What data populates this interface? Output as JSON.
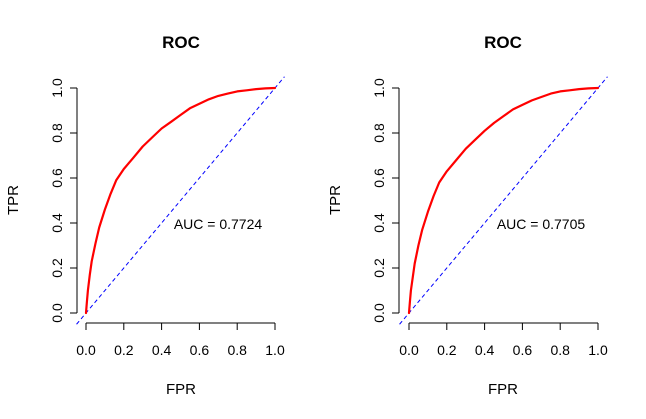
{
  "chart_data": [
    {
      "type": "line",
      "title": "ROC",
      "xlabel": "FPR",
      "ylabel": "TPR",
      "xlim": [
        0,
        1
      ],
      "ylim": [
        0,
        1
      ],
      "xticks": [
        "0.0",
        "0.2",
        "0.4",
        "0.6",
        "0.8",
        "1.0"
      ],
      "yticks": [
        "0.0",
        "0.2",
        "0.4",
        "0.6",
        "0.8",
        "1.0"
      ],
      "grid": false,
      "annotation": "AUC =  0.7724",
      "curve_color": "#ff0000",
      "reference_color": "#0000ff",
      "series": [
        {
          "x": [
            0,
            0.005,
            0.01,
            0.02,
            0.03,
            0.05,
            0.07,
            0.1,
            0.13,
            0.16,
            0.2,
            0.25,
            0.3,
            0.35,
            0.4,
            0.45,
            0.5,
            0.55,
            0.6,
            0.65,
            0.7,
            0.75,
            0.8,
            0.85,
            0.9,
            0.95,
            1.0
          ],
          "y": [
            0,
            0.05,
            0.1,
            0.17,
            0.23,
            0.31,
            0.38,
            0.46,
            0.53,
            0.59,
            0.64,
            0.69,
            0.74,
            0.78,
            0.82,
            0.85,
            0.88,
            0.91,
            0.93,
            0.95,
            0.965,
            0.975,
            0.985,
            0.99,
            0.995,
            0.998,
            1.0
          ]
        },
        {
          "x": [
            -0.05,
            1.05
          ],
          "y": [
            -0.05,
            1.05
          ],
          "style": "dashed"
        }
      ]
    },
    {
      "type": "line",
      "title": "ROC",
      "xlabel": "FPR",
      "ylabel": "TPR",
      "xlim": [
        0,
        1
      ],
      "ylim": [
        0,
        1
      ],
      "xticks": [
        "0.0",
        "0.2",
        "0.4",
        "0.6",
        "0.8",
        "1.0"
      ],
      "yticks": [
        "0.0",
        "0.2",
        "0.4",
        "0.6",
        "0.8",
        "1.0"
      ],
      "grid": false,
      "annotation": "AUC =  0.7705",
      "curve_color": "#ff0000",
      "reference_color": "#0000ff",
      "series": [
        {
          "x": [
            0,
            0.005,
            0.01,
            0.02,
            0.03,
            0.05,
            0.07,
            0.1,
            0.13,
            0.16,
            0.2,
            0.25,
            0.3,
            0.35,
            0.4,
            0.45,
            0.5,
            0.55,
            0.6,
            0.65,
            0.7,
            0.75,
            0.8,
            0.85,
            0.9,
            0.95,
            1.0
          ],
          "y": [
            0,
            0.05,
            0.1,
            0.16,
            0.22,
            0.3,
            0.37,
            0.45,
            0.52,
            0.58,
            0.63,
            0.68,
            0.73,
            0.77,
            0.81,
            0.845,
            0.875,
            0.905,
            0.925,
            0.945,
            0.96,
            0.975,
            0.985,
            0.99,
            0.995,
            0.998,
            1.0
          ]
        },
        {
          "x": [
            -0.05,
            1.05
          ],
          "y": [
            -0.05,
            1.05
          ],
          "style": "dashed"
        }
      ]
    }
  ]
}
